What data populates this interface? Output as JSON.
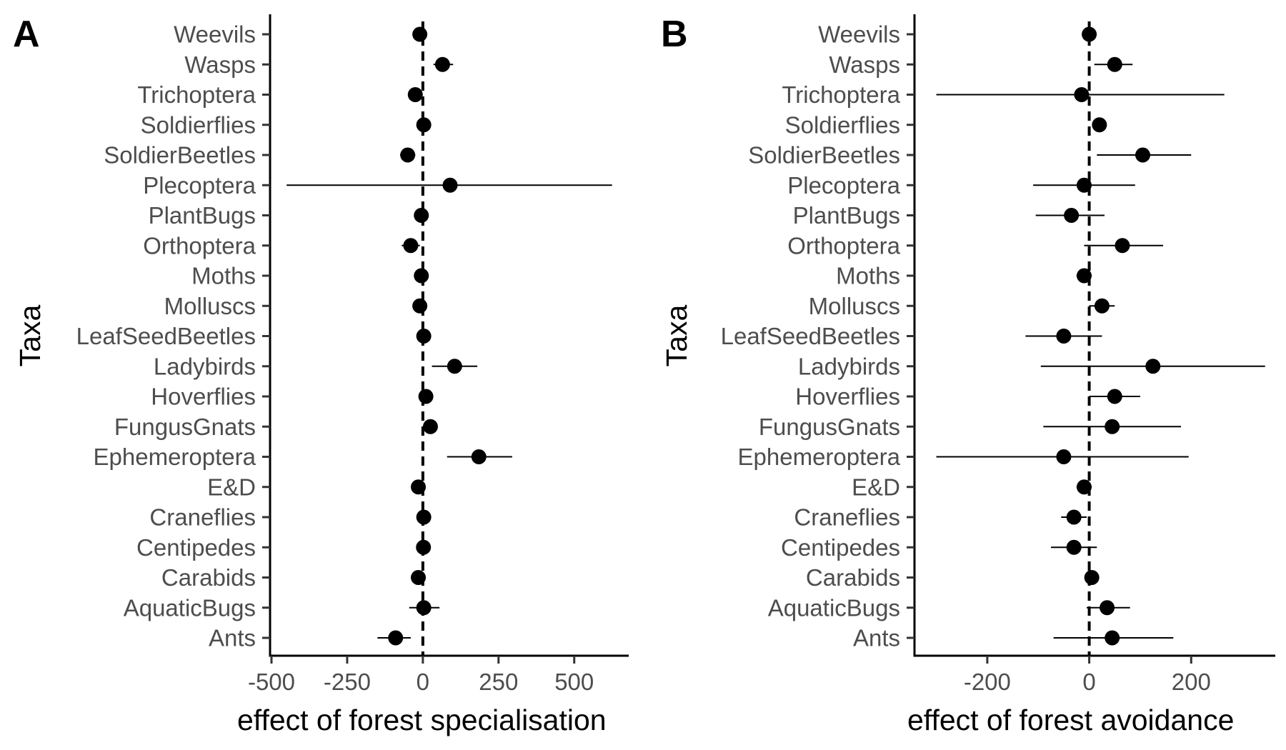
{
  "chart_data": [
    {
      "type": "scatter",
      "panel_label": "A",
      "title": "",
      "xlabel": "effect of forest specialisation",
      "ylabel": "Taxa",
      "xlim": [
        -500,
        680
      ],
      "xticks": [
        -500,
        -250,
        0,
        250,
        500
      ],
      "xtick_labels": [
        "-500",
        "-250",
        "0",
        "250",
        "500"
      ],
      "reference_line": 0,
      "grid": false,
      "categories": [
        "Ants",
        "AquaticBugs",
        "Carabids",
        "Centipedes",
        "Craneflies",
        "E&D",
        "Ephemeroptera",
        "FungusGnats",
        "Hoverflies",
        "Ladybirds",
        "LeafSeedBeetles",
        "Molluscs",
        "Moths",
        "Orthoptera",
        "PlantBugs",
        "Plecoptera",
        "SoldierBeetles",
        "Soldierflies",
        "Trichoptera",
        "Wasps",
        "Weevils"
      ],
      "series": [
        {
          "estimate": [
            -90,
            3,
            -15,
            2,
            3,
            -15,
            185,
            25,
            10,
            105,
            3,
            -10,
            -5,
            -40,
            -5,
            90,
            -50,
            3,
            -25,
            65,
            -10
          ],
          "lower": [
            -150,
            -45,
            -30,
            -15,
            -10,
            -25,
            80,
            15,
            0,
            30,
            -10,
            -20,
            -15,
            -70,
            -15,
            -450,
            -75,
            -10,
            -45,
            35,
            -20
          ],
          "upper": [
            -40,
            55,
            0,
            15,
            15,
            -5,
            295,
            35,
            20,
            180,
            15,
            0,
            5,
            -10,
            5,
            625,
            -25,
            15,
            -5,
            100,
            0
          ]
        }
      ]
    },
    {
      "type": "scatter",
      "panel_label": "B",
      "title": "",
      "xlabel": "effect of forest avoidance",
      "ylabel": "Taxa",
      "xlim": [
        -340,
        365
      ],
      "xticks": [
        -200,
        0,
        200
      ],
      "xtick_labels": [
        "-200",
        "0",
        "200"
      ],
      "reference_line": 0,
      "grid": false,
      "categories": [
        "Ants",
        "AquaticBugs",
        "Carabids",
        "Centipedes",
        "Craneflies",
        "E&D",
        "Ephemeroptera",
        "FungusGnats",
        "Hoverflies",
        "Ladybirds",
        "LeafSeedBeetles",
        "Molluscs",
        "Moths",
        "Orthoptera",
        "PlantBugs",
        "Plecoptera",
        "SoldierBeetles",
        "Soldierflies",
        "Trichoptera",
        "Wasps",
        "Weevils"
      ],
      "series": [
        {
          "estimate": [
            45,
            35,
            5,
            -30,
            -30,
            -10,
            -50,
            45,
            50,
            125,
            -50,
            25,
            -10,
            65,
            -35,
            -10,
            105,
            20,
            -15,
            50,
            0
          ],
          "lower": [
            -70,
            -5,
            0,
            -75,
            -55,
            -25,
            -300,
            -90,
            0,
            -95,
            -125,
            0,
            -25,
            -10,
            -105,
            -110,
            15,
            10,
            -300,
            10,
            -10
          ],
          "upper": [
            165,
            80,
            10,
            15,
            -5,
            5,
            195,
            180,
            100,
            345,
            25,
            50,
            5,
            145,
            30,
            90,
            200,
            30,
            265,
            85,
            10
          ]
        }
      ]
    }
  ]
}
